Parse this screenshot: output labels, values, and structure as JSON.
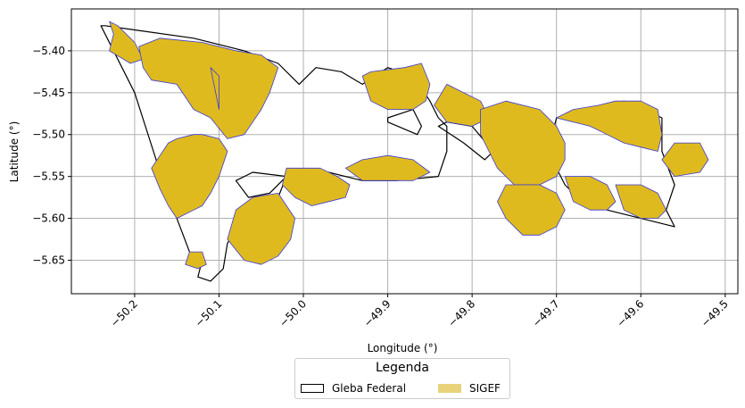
{
  "chart_data": {
    "type": "map",
    "title": "",
    "xlabel": "Longitude (°)",
    "ylabel": "Latitude (°)",
    "xlim": [
      -50.275,
      -49.485
    ],
    "ylim": [
      -5.69,
      -5.35
    ],
    "xticks": [
      -50.2,
      -50.1,
      -50.0,
      -49.9,
      -49.8,
      -49.7,
      -49.6,
      -49.5
    ],
    "xtick_labels": [
      "−50.2",
      "−50.1",
      "−50.0",
      "−49.9",
      "−49.8",
      "−49.7",
      "−49.6",
      "−49.5"
    ],
    "yticks": [
      -5.4,
      -5.45,
      -5.5,
      -5.55,
      -5.6,
      -5.65
    ],
    "ytick_labels": [
      "−5.40",
      "−5.45",
      "−5.50",
      "−5.55",
      "−5.60",
      "−5.65"
    ],
    "grid": true,
    "legend": {
      "title": "Legenda",
      "placement": "bottom-center",
      "entries": [
        {
          "label": "Gleba Federal",
          "style": "outline",
          "color": "#000000"
        },
        {
          "label": "SIGEF",
          "style": "fill",
          "color": "#dfba1f"
        }
      ]
    },
    "layers": [
      {
        "name": "Gleba Federal",
        "edge_color": "#000000",
        "polygons": [
          [
            [
              -50.235,
              -5.37
            ],
            [
              -50.2,
              -5.375
            ],
            [
              -50.13,
              -5.385
            ],
            [
              -50.07,
              -5.4
            ],
            [
              -50.03,
              -5.415
            ],
            [
              -50.005,
              -5.44
            ],
            [
              -49.985,
              -5.42
            ],
            [
              -49.955,
              -5.425
            ],
            [
              -49.93,
              -5.44
            ],
            [
              -49.9,
              -5.42
            ],
            [
              -49.87,
              -5.43
            ],
            [
              -49.85,
              -5.46
            ],
            [
              -49.84,
              -5.48
            ],
            [
              -49.83,
              -5.49
            ],
            [
              -49.83,
              -5.52
            ],
            [
              -49.84,
              -5.55
            ],
            [
              -49.89,
              -5.555
            ],
            [
              -49.93,
              -5.555
            ],
            [
              -49.97,
              -5.545
            ],
            [
              -49.99,
              -5.55
            ],
            [
              -50.02,
              -5.55
            ],
            [
              -50.03,
              -5.575
            ],
            [
              -50.07,
              -5.595
            ],
            [
              -50.09,
              -5.63
            ],
            [
              -50.095,
              -5.66
            ],
            [
              -50.11,
              -5.675
            ],
            [
              -50.125,
              -5.67
            ],
            [
              -50.12,
              -5.65
            ],
            [
              -50.135,
              -5.64
            ],
            [
              -50.165,
              -5.56
            ],
            [
              -50.2,
              -5.45
            ],
            [
              -50.24,
              -5.37
            ]
          ],
          [
            [
              -49.9,
              -5.485
            ],
            [
              -49.865,
              -5.5
            ],
            [
              -49.86,
              -5.49
            ],
            [
              -49.87,
              -5.47
            ],
            [
              -49.9,
              -5.48
            ]
          ],
          [
            [
              -50.02,
              -5.55
            ],
            [
              -50.06,
              -5.545
            ],
            [
              -50.08,
              -5.555
            ],
            [
              -50.065,
              -5.575
            ],
            [
              -50.04,
              -5.57
            ]
          ],
          [
            [
              -49.84,
              -5.49
            ],
            [
              -49.81,
              -5.51
            ],
            [
              -49.785,
              -5.53
            ],
            [
              -49.775,
              -5.52
            ],
            [
              -49.8,
              -5.49
            ],
            [
              -49.83,
              -5.485
            ]
          ],
          [
            [
              -49.7,
              -5.48
            ],
            [
              -49.66,
              -5.475
            ],
            [
              -49.62,
              -5.46
            ],
            [
              -49.575,
              -5.48
            ],
            [
              -49.575,
              -5.52
            ],
            [
              -49.56,
              -5.56
            ],
            [
              -49.57,
              -5.59
            ],
            [
              -49.56,
              -5.61
            ],
            [
              -49.6,
              -5.6
            ],
            [
              -49.64,
              -5.59
            ],
            [
              -49.67,
              -5.58
            ],
            [
              -49.69,
              -5.56
            ],
            [
              -49.71,
              -5.52
            ]
          ]
        ]
      },
      {
        "name": "SIGEF",
        "fill_color": "#dfba1f",
        "edge_color": "#3a3ad8",
        "polygons": [
          [
            [
              -50.23,
              -5.365
            ],
            [
              -50.22,
              -5.37
            ],
            [
              -50.2,
              -5.39
            ],
            [
              -50.19,
              -5.41
            ],
            [
              -50.205,
              -5.415
            ],
            [
              -50.23,
              -5.4
            ],
            [
              -50.225,
              -5.38
            ]
          ],
          [
            [
              -50.195,
              -5.395
            ],
            [
              -50.17,
              -5.385
            ],
            [
              -50.12,
              -5.39
            ],
            [
              -50.08,
              -5.4
            ],
            [
              -50.05,
              -5.405
            ],
            [
              -50.03,
              -5.42
            ],
            [
              -50.04,
              -5.45
            ],
            [
              -50.05,
              -5.47
            ],
            [
              -50.07,
              -5.5
            ],
            [
              -50.09,
              -5.505
            ],
            [
              -50.11,
              -5.48
            ],
            [
              -50.13,
              -5.47
            ],
            [
              -50.15,
              -5.44
            ],
            [
              -50.18,
              -5.435
            ],
            [
              -50.19,
              -5.42
            ]
          ],
          [
            [
              -50.11,
              -5.42
            ],
            [
              -50.1,
              -5.43
            ],
            [
              -50.1,
              -5.47
            ]
          ],
          [
            [
              -50.16,
              -5.51
            ],
            [
              -50.15,
              -5.505
            ],
            [
              -50.13,
              -5.5
            ],
            [
              -50.12,
              -5.5
            ],
            [
              -50.1,
              -5.505
            ],
            [
              -50.09,
              -5.52
            ],
            [
              -50.1,
              -5.55
            ],
            [
              -50.11,
              -5.57
            ],
            [
              -50.12,
              -5.585
            ],
            [
              -50.13,
              -5.59
            ],
            [
              -50.15,
              -5.6
            ],
            [
              -50.16,
              -5.585
            ],
            [
              -50.17,
              -5.565
            ],
            [
              -50.18,
              -5.54
            ],
            [
              -50.17,
              -5.525
            ]
          ],
          [
            [
              -50.135,
              -5.64
            ],
            [
              -50.12,
              -5.64
            ],
            [
              -50.115,
              -5.655
            ],
            [
              -50.125,
              -5.66
            ],
            [
              -50.14,
              -5.655
            ]
          ],
          [
            [
              -50.03,
              -5.57
            ],
            [
              -50.06,
              -5.575
            ],
            [
              -50.08,
              -5.59
            ],
            [
              -50.09,
              -5.625
            ],
            [
              -50.07,
              -5.65
            ],
            [
              -50.05,
              -5.655
            ],
            [
              -50.03,
              -5.645
            ],
            [
              -50.015,
              -5.625
            ],
            [
              -50.01,
              -5.6
            ]
          ],
          [
            [
              -50.02,
              -5.54
            ],
            [
              -49.98,
              -5.54
            ],
            [
              -49.96,
              -5.55
            ],
            [
              -49.945,
              -5.56
            ],
            [
              -49.95,
              -5.575
            ],
            [
              -49.97,
              -5.58
            ],
            [
              -49.99,
              -5.585
            ],
            [
              -50.01,
              -5.575
            ],
            [
              -50.025,
              -5.56
            ]
          ],
          [
            [
              -49.93,
              -5.43
            ],
            [
              -49.92,
              -5.425
            ],
            [
              -49.88,
              -5.42
            ],
            [
              -49.86,
              -5.415
            ],
            [
              -49.85,
              -5.44
            ],
            [
              -49.855,
              -5.46
            ],
            [
              -49.87,
              -5.47
            ],
            [
              -49.9,
              -5.47
            ],
            [
              -49.92,
              -5.46
            ]
          ],
          [
            [
              -49.83,
              -5.44
            ],
            [
              -49.82,
              -5.445
            ],
            [
              -49.79,
              -5.46
            ],
            [
              -49.78,
              -5.48
            ],
            [
              -49.8,
              -5.49
            ],
            [
              -49.83,
              -5.485
            ],
            [
              -49.845,
              -5.465
            ]
          ],
          [
            [
              -49.95,
              -5.54
            ],
            [
              -49.93,
              -5.53
            ],
            [
              -49.9,
              -5.525
            ],
            [
              -49.87,
              -5.53
            ],
            [
              -49.85,
              -5.545
            ],
            [
              -49.87,
              -5.555
            ],
            [
              -49.9,
              -5.555
            ],
            [
              -49.93,
              -5.555
            ]
          ],
          [
            [
              -49.79,
              -5.47
            ],
            [
              -49.76,
              -5.46
            ],
            [
              -49.72,
              -5.47
            ],
            [
              -49.7,
              -5.49
            ],
            [
              -49.69,
              -5.51
            ],
            [
              -49.69,
              -5.53
            ],
            [
              -49.7,
              -5.55
            ],
            [
              -49.72,
              -5.56
            ],
            [
              -49.75,
              -5.56
            ],
            [
              -49.77,
              -5.54
            ],
            [
              -49.78,
              -5.52
            ],
            [
              -49.79,
              -5.5
            ]
          ],
          [
            [
              -49.7,
              -5.48
            ],
            [
              -49.68,
              -5.47
            ],
            [
              -49.65,
              -5.465
            ],
            [
              -49.63,
              -5.46
            ],
            [
              -49.6,
              -5.46
            ],
            [
              -49.58,
              -5.47
            ],
            [
              -49.575,
              -5.5
            ],
            [
              -49.58,
              -5.52
            ],
            [
              -49.6,
              -5.515
            ],
            [
              -49.62,
              -5.51
            ],
            [
              -49.64,
              -5.5
            ],
            [
              -49.66,
              -5.49
            ]
          ],
          [
            [
              -49.76,
              -5.56
            ],
            [
              -49.72,
              -5.56
            ],
            [
              -49.7,
              -5.57
            ],
            [
              -49.69,
              -5.59
            ],
            [
              -49.7,
              -5.61
            ],
            [
              -49.72,
              -5.62
            ],
            [
              -49.74,
              -5.62
            ],
            [
              -49.76,
              -5.6
            ],
            [
              -49.77,
              -5.58
            ]
          ],
          [
            [
              -49.69,
              -5.55
            ],
            [
              -49.66,
              -5.55
            ],
            [
              -49.64,
              -5.56
            ],
            [
              -49.63,
              -5.58
            ],
            [
              -49.64,
              -5.59
            ],
            [
              -49.66,
              -5.59
            ],
            [
              -49.68,
              -5.58
            ]
          ],
          [
            [
              -49.63,
              -5.56
            ],
            [
              -49.6,
              -5.56
            ],
            [
              -49.58,
              -5.57
            ],
            [
              -49.57,
              -5.59
            ],
            [
              -49.58,
              -5.6
            ],
            [
              -49.6,
              -5.6
            ],
            [
              -49.62,
              -5.59
            ]
          ],
          [
            [
              -49.56,
              -5.51
            ],
            [
              -49.53,
              -5.51
            ],
            [
              -49.52,
              -5.53
            ],
            [
              -49.53,
              -5.545
            ],
            [
              -49.56,
              -5.55
            ],
            [
              -49.575,
              -5.53
            ]
          ]
        ]
      }
    ]
  }
}
